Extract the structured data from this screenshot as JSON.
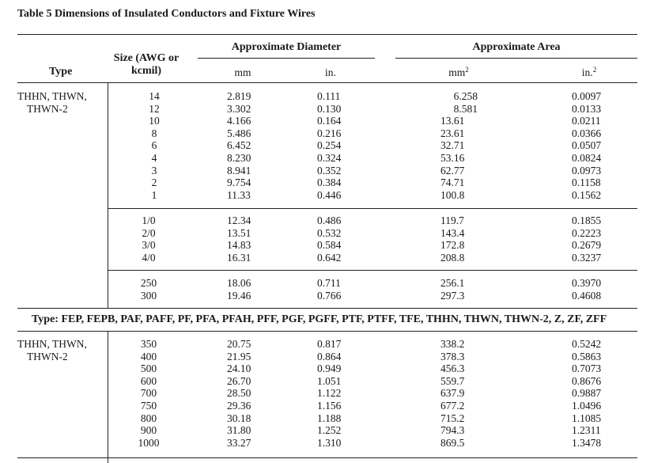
{
  "title": "Table 5 Dimensions of Insulated Conductors and Fixture Wires",
  "headers": {
    "type": "Type",
    "size_line1": "Size (AWG or",
    "size_line2": "kcmil)",
    "approx_diameter": "Approximate Diameter",
    "approx_area": "Approximate Area",
    "mm": "mm",
    "in": "in.",
    "mm2_base": "mm",
    "mm2_sup": "2",
    "in2_base": "in.",
    "in2_sup": "2"
  },
  "group_type_line": "Type: FEP, FEPB, PAF, PAFF, PF, PFA, PFAH, PFF, PGF, PGFF, PTF, PTFF, TFE, THHN, THWN, THWN-2, Z, ZF, ZFF",
  "section1": {
    "type_line1": "THHN, THWN,",
    "type_line2": "THWN-2",
    "blocks": [
      {
        "sizes": [
          "14",
          "12",
          "10",
          "8",
          "6",
          "4",
          "3",
          "2",
          "1"
        ],
        "mm": [
          "2.819",
          "3.302",
          "4.166",
          "5.486",
          "6.452",
          "8.230",
          "8.941",
          "9.754",
          "11.33"
        ],
        "in": [
          "0.111",
          "0.130",
          "0.164",
          "0.216",
          "0.254",
          "0.324",
          "0.352",
          "0.384",
          "0.446"
        ],
        "mm2": [
          "6.258",
          "8.581",
          "13.61",
          "23.61",
          "32.71",
          "53.16",
          "62.77",
          "74.71",
          "100.8"
        ],
        "in2": [
          "0.0097",
          "0.0133",
          "0.0211",
          "0.0366",
          "0.0507",
          "0.0824",
          "0.0973",
          "0.1158",
          "0.1562"
        ]
      },
      {
        "sizes": [
          "1/0",
          "2/0",
          "3/0",
          "4/0"
        ],
        "mm": [
          "12.34",
          "13.51",
          "14.83",
          "16.31"
        ],
        "in": [
          "0.486",
          "0.532",
          "0.584",
          "0.642"
        ],
        "mm2": [
          "119.7",
          "143.4",
          "172.8",
          "208.8"
        ],
        "in2": [
          "0.1855",
          "0.2223",
          "0.2679",
          "0.3237"
        ]
      },
      {
        "sizes": [
          "250",
          "300"
        ],
        "mm": [
          "18.06",
          "19.46"
        ],
        "in": [
          "0.711",
          "0.766"
        ],
        "mm2": [
          "256.1",
          "297.3"
        ],
        "in2": [
          "0.3970",
          "0.4608"
        ]
      }
    ]
  },
  "section2": {
    "type_line1": "THHN, THWN,",
    "type_line2": "THWN-2",
    "sizes": [
      "350",
      "400",
      "500",
      "600",
      "700",
      "750",
      "800",
      "900",
      "1000"
    ],
    "mm": [
      "20.75",
      "21.95",
      "24.10",
      "26.70",
      "28.50",
      "29.36",
      "30.18",
      "31.80",
      "33.27"
    ],
    "in": [
      "0.817",
      "0.864",
      "0.949",
      "1.051",
      "1.122",
      "1.156",
      "1.188",
      "1.252",
      "1.310"
    ],
    "mm2": [
      "338.2",
      "378.3",
      "456.3",
      "559.7",
      "637.9",
      "677.2",
      "715.2",
      "794.3",
      "869.5"
    ],
    "in2": [
      "0.5242",
      "0.5863",
      "0.7073",
      "0.8676",
      "0.9887",
      "1.0496",
      "1.1085",
      "1.2311",
      "1.3478"
    ]
  }
}
